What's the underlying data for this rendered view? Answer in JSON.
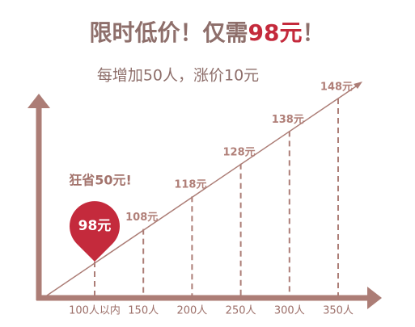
{
  "chart_data": {
    "type": "line",
    "title_parts": [
      "限时低价！仅需",
      "98元",
      "！"
    ],
    "subtitle": "每增加50人，涨价10元",
    "annotation": "狂省50元!",
    "categories": [
      "100人以内",
      "150人",
      "200人",
      "250人",
      "300人",
      "350人"
    ],
    "values": [
      98,
      108,
      118,
      128,
      138,
      148
    ],
    "value_labels": [
      "98元",
      "108元",
      "118元",
      "128元",
      "138元",
      "148元"
    ],
    "color": "#ac7d76",
    "highlight_color": "#c42a3c"
  }
}
